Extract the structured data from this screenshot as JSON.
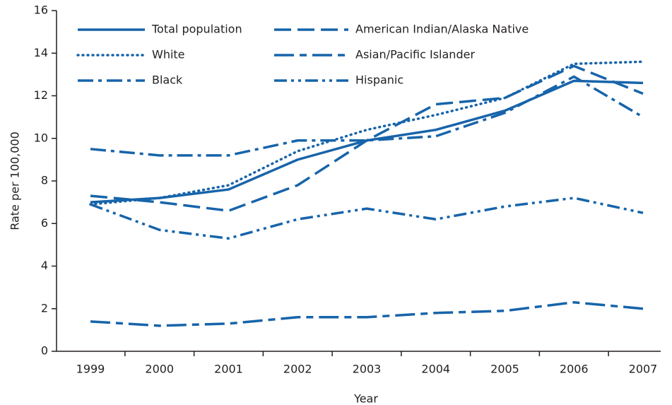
{
  "chart_data": {
    "type": "line",
    "x_label": "Year",
    "y_label": "Rate per 100,000",
    "categories": [
      "1999",
      "2000",
      "2001",
      "2002",
      "2003",
      "2004",
      "2005",
      "2006",
      "2007"
    ],
    "ylim": [
      0,
      16
    ],
    "yticks": [
      0,
      2,
      4,
      6,
      8,
      10,
      12,
      14,
      16
    ],
    "series": [
      {
        "name": "Total population",
        "color": "#1764aa",
        "dash": "none",
        "values": [
          7.0,
          7.2,
          7.6,
          9.0,
          9.9,
          10.4,
          11.3,
          12.7,
          12.6
        ]
      },
      {
        "name": "White",
        "color": "#1764aa",
        "dash": "1,6",
        "values": [
          6.9,
          7.2,
          7.8,
          9.4,
          10.4,
          11.1,
          11.9,
          13.5,
          13.6
        ]
      },
      {
        "name": "Black",
        "color": "#1764aa",
        "dash": "22,7,5,7",
        "values": [
          9.5,
          9.2,
          9.2,
          9.9,
          9.9,
          10.1,
          11.2,
          12.9,
          11.0
        ]
      },
      {
        "name": "American Indian/Alaska Native",
        "color": "#1764aa",
        "dash": "24,9",
        "values": [
          7.3,
          7.0,
          6.6,
          7.8,
          9.9,
          11.6,
          11.9,
          13.4,
          12.1
        ]
      },
      {
        "name": "Asian/Pacific Islander",
        "color": "#1764aa",
        "dash": "28,8,10,8",
        "values": [
          1.4,
          1.2,
          1.3,
          1.6,
          1.6,
          1.8,
          1.9,
          2.3,
          2.0
        ]
      },
      {
        "name": "Hispanic",
        "color": "#1764aa",
        "dash": "18,6,4,6,4,6",
        "values": [
          6.9,
          5.7,
          5.3,
          6.2,
          6.7,
          6.2,
          6.8,
          7.2,
          6.5
        ]
      }
    ]
  }
}
